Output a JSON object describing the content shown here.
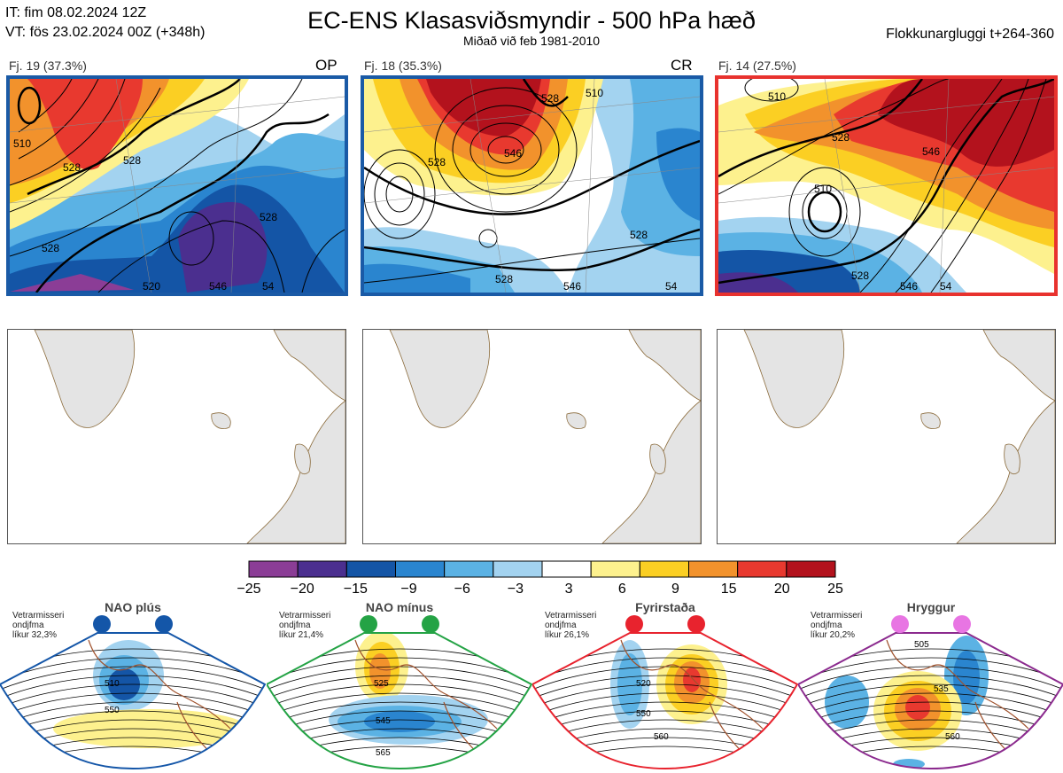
{
  "header": {
    "it_line": "IT: fim 08.02.2024 12Z",
    "vt_line": "VT: fös 23.02.2024 00Z  (+348h)",
    "title": "EC-ENS Klasasviðsmyndir - 500 hPa hæð",
    "subtitle": "Miðað við feb 1981-2010",
    "window": "Flokkunargluggi t+264-360"
  },
  "panels": [
    {
      "caption": "Fj. 19 (37.3%)",
      "tag": "OP",
      "border_color": "#1a5aa6",
      "contour_labels": [
        "510",
        "528",
        "528",
        "528",
        "528",
        "520",
        "546",
        "54"
      ]
    },
    {
      "caption": "Fj. 18 (35.3%)",
      "tag": "CR",
      "border_color": "#1a5aa6",
      "contour_labels": [
        "528",
        "528",
        "546",
        "510",
        "528",
        "528",
        "546",
        "54"
      ]
    },
    {
      "caption": "Fj. 14 (27.5%)",
      "tag": "",
      "border_color": "#e8322e",
      "contour_labels": [
        "510",
        "528",
        "546",
        "510",
        "528",
        "546",
        "54"
      ]
    }
  ],
  "colorbar": {
    "colors": [
      "#8b3d96",
      "#4b2f8f",
      "#1455a6",
      "#2a85cf",
      "#5bb2e4",
      "#a3d3f0",
      "#ffffff",
      "#fdf18e",
      "#fbcf23",
      "#f2922c",
      "#e8392f",
      "#b3121d"
    ],
    "ticks": [
      "−25",
      "−20",
      "−15",
      "−9",
      "−6",
      "−3",
      "3",
      "6",
      "9",
      "15",
      "20",
      "25"
    ]
  },
  "regimes": [
    {
      "title": "NAO plús",
      "dot_color": "#1456a8",
      "border_color": "#1456a8",
      "note_lines": [
        "Vetrarmisseri",
        "ondjfma",
        "líkur 32,3%"
      ],
      "contour_labels": [
        "510",
        "550"
      ]
    },
    {
      "title": "NAO mínus",
      "dot_color": "#24a345",
      "border_color": "#24a345",
      "note_lines": [
        "Vetrarmisseri",
        "ondjfma",
        "líkur 21,4%"
      ],
      "contour_labels": [
        "525",
        "545",
        "565"
      ]
    },
    {
      "title": "Fyrirstaða",
      "dot_color": "#e8232e",
      "border_color": "#e8232e",
      "note_lines": [
        "Vetrarmisseri",
        "ondjfma",
        "líkur 26,1%"
      ],
      "contour_labels": [
        "520",
        "550",
        "560"
      ]
    },
    {
      "title": "Hryggur",
      "dot_color": "#e875e3",
      "border_color": "#8b2a8e",
      "note_lines": [
        "Vetrarmisseri",
        "ondjfma",
        "líkur 20,2%"
      ],
      "contour_labels": [
        "505",
        "535",
        "560"
      ]
    }
  ]
}
